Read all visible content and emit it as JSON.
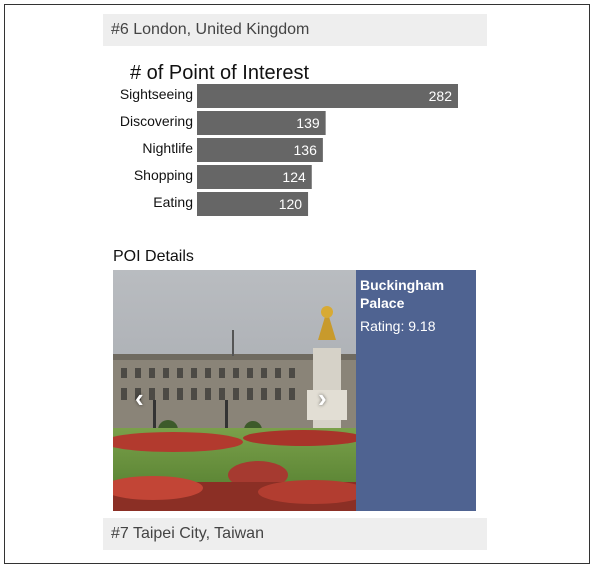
{
  "cities": [
    {
      "label": "#6 London, United Kingdom"
    },
    {
      "label": "#7 Taipei City, Taiwan"
    }
  ],
  "chart_data": {
    "type": "bar",
    "orientation": "horizontal",
    "title": "# of Point of Interest",
    "categories": [
      "Sightseeing",
      "Discovering",
      "Nightlife",
      "Shopping",
      "Eating"
    ],
    "values": [
      282,
      139,
      136,
      124,
      120
    ],
    "bar_color": "#666666",
    "label_color": "#ffffff",
    "grid": false
  },
  "poi": {
    "section_title": "POI Details",
    "name": "Buckingham Palace",
    "rating_text": "Rating: 9.18",
    "panel_color": "#4f6391",
    "prev_glyph": "‹",
    "next_glyph": "›"
  }
}
